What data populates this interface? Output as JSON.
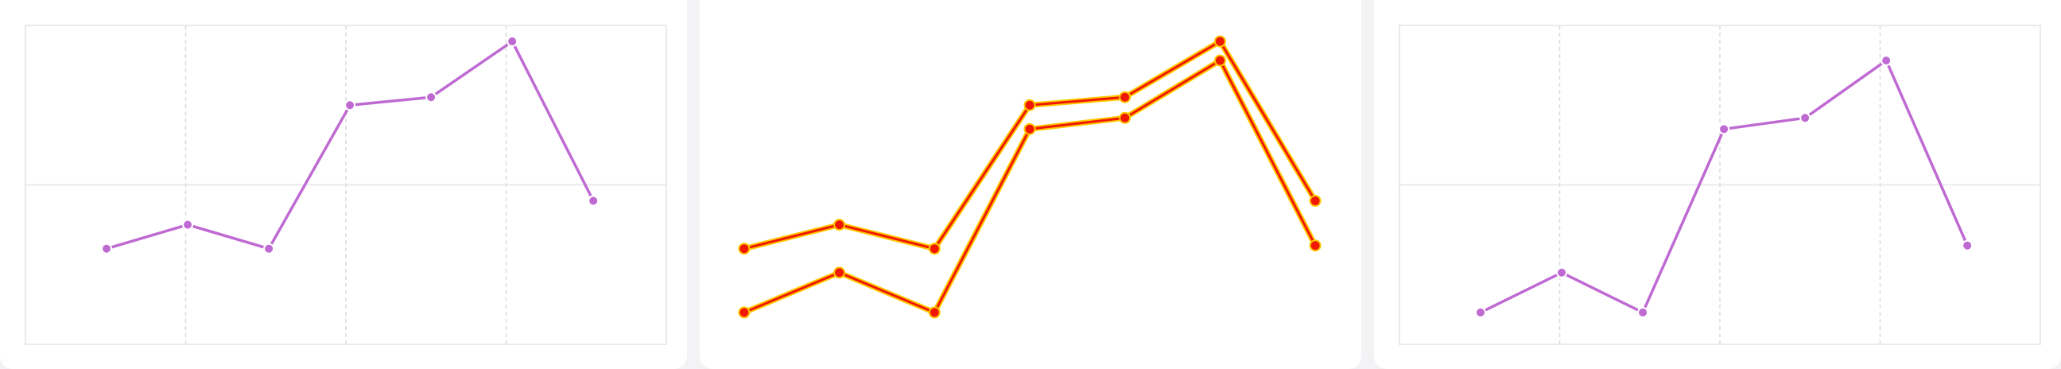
{
  "colors": {
    "series": "#bf6ad2",
    "highlight": "#f01800",
    "highlight_outline": "#ffc800",
    "plot_border": "#e3e3e6",
    "grid_solid": "#e6e6e9",
    "grid_dashed": "#dcdce0"
  },
  "chart_data": [
    {
      "type": "line",
      "series": [
        {
          "values": [
            60,
            75,
            60,
            150,
            155,
            190,
            90
          ]
        }
      ],
      "x": [
        0,
        1,
        2,
        3,
        4,
        5,
        6
      ],
      "xlim": [
        -1,
        6.9
      ],
      "ylim": [
        0,
        200
      ],
      "grid": true
    },
    {
      "type": "line",
      "highlighted": true,
      "series": [
        {
          "values": [
            60,
            75,
            60,
            150,
            155,
            190,
            90
          ]
        },
        {
          "values": [
            20,
            45,
            20,
            135,
            142,
            178,
            62
          ]
        }
      ],
      "x": [
        0,
        1,
        2,
        3,
        4,
        5,
        6
      ],
      "xlim": [
        -0.3,
        6.4
      ],
      "ylim": [
        0,
        200
      ],
      "grid": false
    },
    {
      "type": "line",
      "series": [
        {
          "values": [
            20,
            45,
            20,
            135,
            142,
            178,
            62
          ]
        }
      ],
      "x": [
        0,
        1,
        2,
        3,
        4,
        5,
        6
      ],
      "xlim": [
        -1,
        6.9
      ],
      "ylim": [
        0,
        200
      ],
      "grid": true
    }
  ]
}
